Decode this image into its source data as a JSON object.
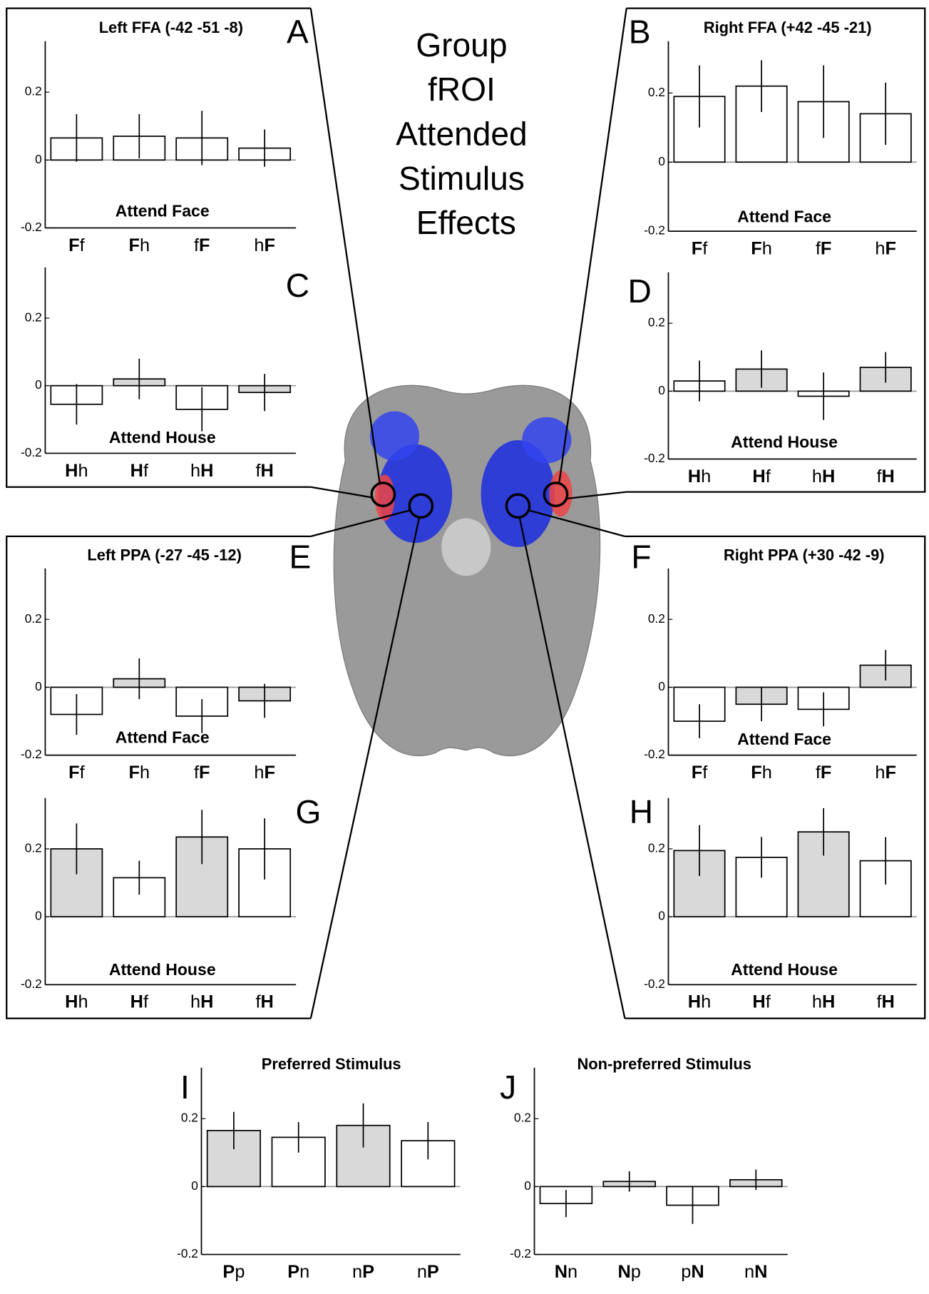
{
  "title_lines": [
    "Group",
    "fROI",
    "Attended",
    "Stimulus",
    "Effects"
  ],
  "chart_data": [
    {
      "type": "bar",
      "label": "A",
      "title": "Left FFA (-42 -51 -8)",
      "annotation": "Attend Face",
      "categories": [
        "Ff",
        "Fh",
        "fF",
        "hF"
      ],
      "values": [
        0.065,
        0.07,
        0.065,
        0.035
      ],
      "errors": [
        0.07,
        0.065,
        0.08,
        0.055
      ],
      "colors": [
        "#ffffff",
        "#ffffff",
        "#ffffff",
        "#ffffff"
      ],
      "ylim": [
        -0.2,
        0.35
      ],
      "yticks": [
        -0.2,
        0,
        0.2
      ]
    },
    {
      "type": "bar",
      "label": "B",
      "title": "Right FFA (+42 -45 -21)",
      "annotation": "Attend Face",
      "categories": [
        "Ff",
        "Fh",
        "fF",
        "hF"
      ],
      "values": [
        0.19,
        0.22,
        0.175,
        0.14
      ],
      "errors": [
        0.09,
        0.075,
        0.105,
        0.09
      ],
      "colors": [
        "#ffffff",
        "#ffffff",
        "#ffffff",
        "#ffffff"
      ],
      "ylim": [
        -0.2,
        0.35
      ],
      "yticks": [
        -0.2,
        0,
        0.2
      ]
    },
    {
      "type": "bar",
      "label": "C",
      "annotation": "Attend House",
      "categories": [
        "Hh",
        "Hf",
        "hH",
        "fH"
      ],
      "values": [
        -0.055,
        0.02,
        -0.07,
        -0.02
      ],
      "errors": [
        0.06,
        0.06,
        0.065,
        0.055
      ],
      "colors": [
        "#ffffff",
        "#d9d9d9",
        "#ffffff",
        "#d9d9d9"
      ],
      "ylim": [
        -0.2,
        0.35
      ],
      "yticks": [
        -0.2,
        0,
        0.2
      ]
    },
    {
      "type": "bar",
      "label": "D",
      "annotation": "Attend House",
      "categories": [
        "Hh",
        "Hf",
        "hH",
        "fH"
      ],
      "values": [
        0.03,
        0.065,
        -0.015,
        0.07
      ],
      "errors": [
        0.06,
        0.055,
        0.07,
        0.045
      ],
      "colors": [
        "#ffffff",
        "#d9d9d9",
        "#ffffff",
        "#d9d9d9"
      ],
      "ylim": [
        -0.2,
        0.35
      ],
      "yticks": [
        -0.2,
        0,
        0.2
      ]
    },
    {
      "type": "bar",
      "label": "E",
      "title": "Left PPA (-27 -45 -12)",
      "annotation": "Attend Face",
      "categories": [
        "Ff",
        "Fh",
        "fF",
        "hF"
      ],
      "values": [
        -0.08,
        0.025,
        -0.085,
        -0.04
      ],
      "errors": [
        0.06,
        0.06,
        0.05,
        0.05
      ],
      "colors": [
        "#ffffff",
        "#d9d9d9",
        "#ffffff",
        "#d9d9d9"
      ],
      "ylim": [
        -0.2,
        0.35
      ],
      "yticks": [
        -0.2,
        0,
        0.2
      ]
    },
    {
      "type": "bar",
      "label": "F",
      "title": "Right PPA (+30 -42 -9)",
      "annotation": "Attend Face",
      "categories": [
        "Ff",
        "Fh",
        "fF",
        "hF"
      ],
      "values": [
        -0.1,
        -0.05,
        -0.065,
        0.065
      ],
      "errors": [
        0.05,
        0.05,
        0.05,
        0.045
      ],
      "colors": [
        "#ffffff",
        "#d9d9d9",
        "#ffffff",
        "#d9d9d9"
      ],
      "ylim": [
        -0.2,
        0.35
      ],
      "yticks": [
        -0.2,
        0,
        0.2
      ]
    },
    {
      "type": "bar",
      "label": "G",
      "annotation": "Attend House",
      "categories": [
        "Hh",
        "Hf",
        "hH",
        "fH"
      ],
      "values": [
        0.2,
        0.115,
        0.235,
        0.2
      ],
      "errors": [
        0.075,
        0.05,
        0.08,
        0.09
      ],
      "colors": [
        "#d9d9d9",
        "#ffffff",
        "#d9d9d9",
        "#ffffff"
      ],
      "ylim": [
        -0.2,
        0.35
      ],
      "yticks": [
        -0.2,
        0,
        0.2
      ]
    },
    {
      "type": "bar",
      "label": "H",
      "annotation": "Attend House",
      "categories": [
        "Hh",
        "Hf",
        "hH",
        "fH"
      ],
      "values": [
        0.195,
        0.175,
        0.25,
        0.165
      ],
      "errors": [
        0.075,
        0.06,
        0.07,
        0.07
      ],
      "colors": [
        "#d9d9d9",
        "#ffffff",
        "#d9d9d9",
        "#ffffff"
      ],
      "ylim": [
        -0.2,
        0.35
      ],
      "yticks": [
        -0.2,
        0,
        0.2
      ]
    },
    {
      "type": "bar",
      "label": "I",
      "title": "Preferred Stimulus",
      "categories": [
        "Pp",
        "Pn",
        "nP",
        "nP"
      ],
      "values": [
        0.165,
        0.145,
        0.18,
        0.135
      ],
      "errors": [
        0.055,
        0.045,
        0.065,
        0.055
      ],
      "colors": [
        "#d9d9d9",
        "#ffffff",
        "#d9d9d9",
        "#ffffff"
      ],
      "ylim": [
        -0.2,
        0.35
      ],
      "yticks": [
        -0.2,
        0,
        0.2
      ]
    },
    {
      "type": "bar",
      "label": "J",
      "title": "Non-preferred Stimulus",
      "categories": [
        "Nn",
        "Np",
        "pN",
        "nN"
      ],
      "values": [
        -0.05,
        0.015,
        -0.055,
        0.02
      ],
      "errors": [
        0.04,
        0.03,
        0.055,
        0.03
      ],
      "colors": [
        "#ffffff",
        "#d9d9d9",
        "#ffffff",
        "#d9d9d9"
      ],
      "ylim": [
        -0.2,
        0.35
      ],
      "yticks": [
        -0.2,
        0,
        0.2
      ]
    }
  ]
}
